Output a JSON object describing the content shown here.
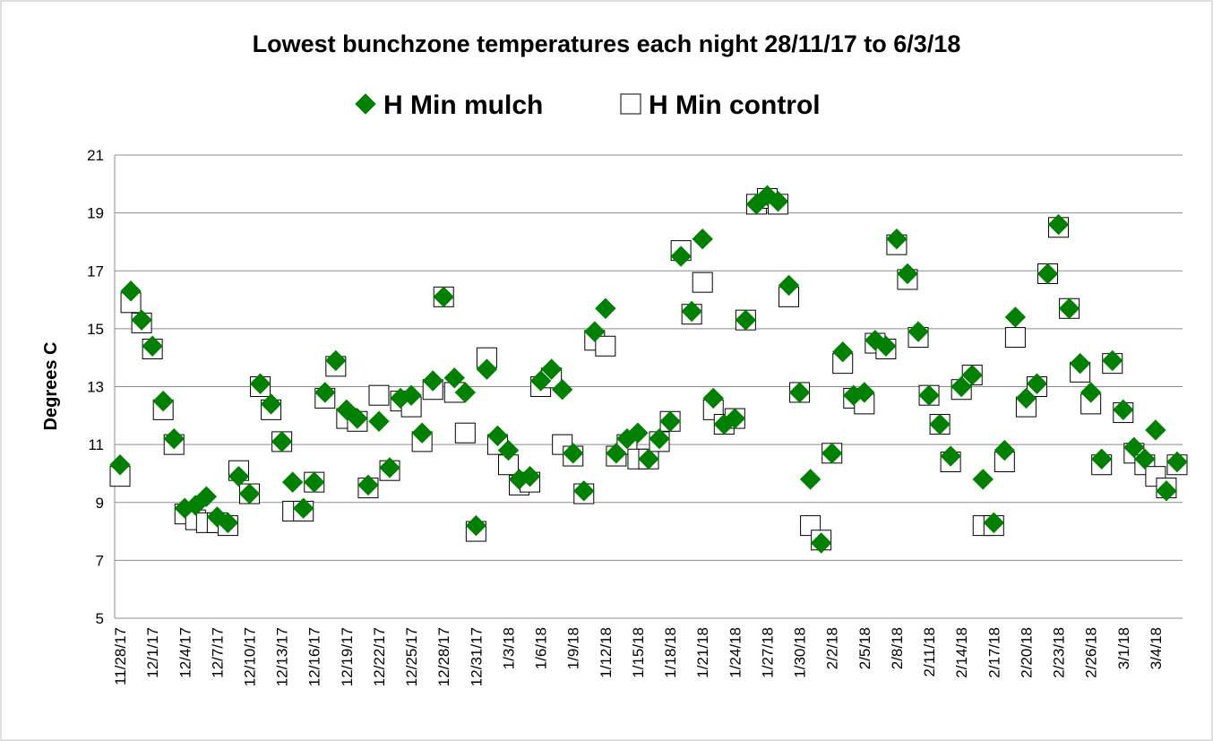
{
  "chart_data": {
    "type": "scatter",
    "title": "Lowest bunchzone temperatures each night 28/11/17 to 6/3/18",
    "y_label": "Degrees C",
    "categories": [
      "11/28/17",
      null,
      null,
      "12/1/17",
      null,
      null,
      "12/4/17",
      null,
      null,
      "12/7/17",
      null,
      null,
      "12/10/17",
      null,
      null,
      "12/13/17",
      null,
      null,
      "12/16/17",
      null,
      null,
      "12/19/17",
      null,
      null,
      "12/22/17",
      null,
      null,
      "12/25/17",
      null,
      null,
      "12/28/17",
      null,
      null,
      "12/31/17",
      null,
      null,
      "1/3/18",
      null,
      null,
      "1/6/18",
      null,
      null,
      "1/9/18",
      null,
      null,
      "1/12/18",
      null,
      null,
      "1/15/18",
      null,
      null,
      "1/18/18",
      null,
      null,
      "1/21/18",
      null,
      null,
      "1/24/18",
      null,
      null,
      "1/27/18",
      null,
      null,
      "1/30/18",
      null,
      null,
      "2/2/18",
      null,
      null,
      "2/5/18",
      null,
      null,
      "2/8/18",
      null,
      null,
      "2/11/18",
      null,
      null,
      "2/14/18",
      null,
      null,
      "2/17/18",
      null,
      null,
      "2/20/18",
      null,
      null,
      "2/23/18",
      null,
      null,
      "2/26/18",
      null,
      null,
      "3/1/18",
      null,
      null,
      "3/4/18",
      null,
      null
    ],
    "series": [
      {
        "name": "H Min mulch",
        "color": "#008000",
        "marker": "diamond",
        "values": [
          10.3,
          16.3,
          15.3,
          14.4,
          12.5,
          11.2,
          8.8,
          8.9,
          9.2,
          8.5,
          8.3,
          9.9,
          9.3,
          13.1,
          12.4,
          11.1,
          9.7,
          8.8,
          9.7,
          12.8,
          13.9,
          12.2,
          11.9,
          9.6,
          11.8,
          10.2,
          12.6,
          12.7,
          11.4,
          13.2,
          16.1,
          13.3,
          12.8,
          8.2,
          13.6,
          11.3,
          10.8,
          9.8,
          9.9,
          13.2,
          13.6,
          12.9,
          10.7,
          9.4,
          14.9,
          15.7,
          10.7,
          11.2,
          11.4,
          10.5,
          11.2,
          11.8,
          17.5,
          15.6,
          18.1,
          12.6,
          11.7,
          11.9,
          15.3,
          19.3,
          19.6,
          19.4,
          16.5,
          12.8,
          9.8,
          7.6,
          10.7,
          14.2,
          12.7,
          12.8,
          14.6,
          14.4,
          18.1,
          16.9,
          14.9,
          12.7,
          11.7,
          10.6,
          13.0,
          13.4,
          9.8,
          8.3,
          10.8,
          15.4,
          12.6,
          13.1,
          16.9,
          18.6,
          15.7,
          13.8,
          12.8,
          10.5,
          13.9,
          12.2,
          10.9,
          10.5,
          11.5,
          9.4,
          10.4
        ]
      },
      {
        "name": "H Min control",
        "color": "#ffffff",
        "marker": "square",
        "values": [
          9.9,
          15.9,
          15.2,
          14.3,
          12.2,
          11.0,
          8.6,
          8.4,
          8.3,
          8.3,
          8.2,
          10.1,
          9.3,
          13.0,
          12.2,
          11.1,
          8.7,
          8.7,
          9.7,
          12.6,
          13.7,
          11.9,
          11.8,
          9.5,
          12.7,
          10.1,
          12.5,
          12.3,
          11.1,
          12.9,
          16.1,
          12.8,
          11.4,
          8.0,
          14.0,
          11.0,
          10.3,
          9.6,
          9.7,
          13.0,
          13.3,
          11.0,
          10.6,
          9.3,
          14.6,
          14.4,
          10.6,
          11.0,
          10.5,
          10.5,
          11.1,
          11.8,
          17.7,
          15.5,
          16.6,
          12.2,
          11.7,
          11.9,
          15.3,
          19.3,
          19.5,
          19.3,
          16.1,
          12.8,
          8.2,
          7.7,
          10.7,
          13.8,
          12.6,
          12.4,
          14.5,
          14.3,
          17.9,
          16.7,
          14.7,
          12.7,
          11.7,
          10.4,
          12.9,
          13.4,
          8.2,
          8.2,
          10.4,
          14.7,
          12.3,
          13.0,
          16.9,
          18.5,
          15.7,
          13.5,
          12.4,
          10.3,
          13.8,
          12.1,
          10.7,
          10.3,
          9.9,
          9.5,
          10.3
        ]
      }
    ],
    "ylim": [
      5,
      21
    ],
    "yticks": [
      5,
      7,
      9,
      11,
      13,
      15,
      17,
      19,
      21
    ],
    "grid": true,
    "legend": "top"
  }
}
